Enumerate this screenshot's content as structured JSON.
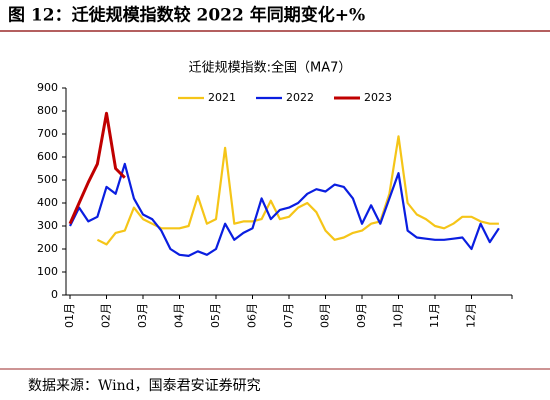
{
  "chart_data": {
    "type": "line",
    "title": "图 12：迁徙规模指数较 2022 年同期变化+%",
    "subtitle": "迁徙规模指数:全国（MA7）",
    "source": "数据来源：Wind，国泰君安证券研究",
    "categories": [
      "01月",
      null,
      null,
      null,
      "02月",
      null,
      null,
      null,
      "03月",
      null,
      null,
      null,
      "04月",
      null,
      null,
      null,
      "05月",
      null,
      null,
      null,
      "06月",
      null,
      null,
      null,
      "07月",
      null,
      null,
      null,
      "08月",
      null,
      null,
      null,
      "09月",
      null,
      null,
      null,
      "10月",
      null,
      null,
      null,
      "11月",
      null,
      null,
      null,
      "12月",
      null,
      null,
      null
    ],
    "series": [
      {
        "name": "2021",
        "color": "#f5c518",
        "values": [
          null,
          null,
          null,
          240,
          220,
          270,
          280,
          380,
          330,
          310,
          290,
          290,
          290,
          300,
          430,
          310,
          330,
          640,
          310,
          320,
          320,
          330,
          410,
          330,
          340,
          380,
          400,
          360,
          280,
          240,
          250,
          270,
          280,
          310,
          320,
          440,
          690,
          400,
          350,
          330,
          300,
          290,
          310,
          340,
          340,
          320,
          310,
          310
        ]
      },
      {
        "name": "2022",
        "color": "#0a1ee0",
        "values": [
          300,
          380,
          320,
          340,
          470,
          440,
          570,
          420,
          350,
          330,
          280,
          200,
          175,
          170,
          190,
          175,
          200,
          310,
          240,
          270,
          290,
          420,
          330,
          370,
          380,
          400,
          440,
          460,
          450,
          480,
          470,
          420,
          310,
          390,
          310,
          420,
          530,
          280,
          250,
          245,
          240,
          240,
          245,
          250,
          200,
          310,
          230,
          290
        ]
      },
      {
        "name": "2023",
        "color": "#c00000",
        "values": [
          310,
          400,
          490,
          570,
          790,
          550,
          510,
          null,
          null,
          null,
          null,
          null,
          null,
          null,
          null,
          null,
          null,
          null,
          null,
          null,
          null,
          null,
          null,
          null,
          null,
          null,
          null,
          null,
          null,
          null,
          null,
          null,
          null,
          null,
          null,
          null,
          null,
          null,
          null,
          null,
          null,
          null,
          null,
          null,
          null,
          null,
          null,
          null
        ]
      }
    ],
    "ylim": [
      0,
      900
    ],
    "yticks": [
      0,
      100,
      200,
      300,
      400,
      500,
      600,
      700,
      800,
      900
    ],
    "grid": false
  }
}
